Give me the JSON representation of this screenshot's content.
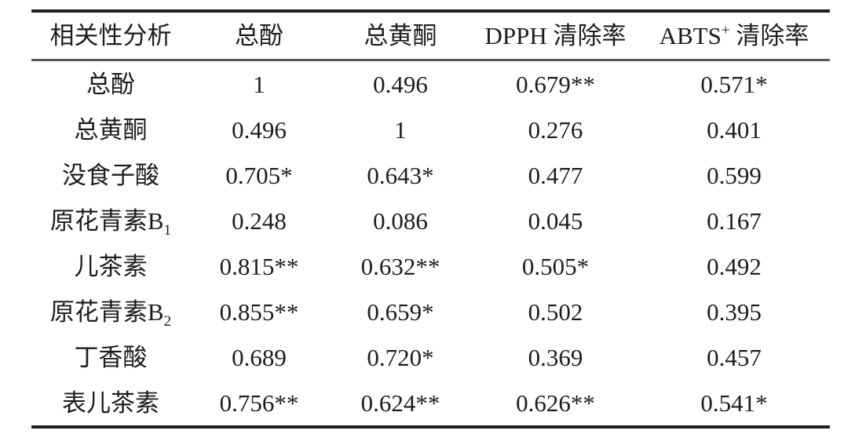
{
  "page": {
    "background_color": "#ffffff",
    "text_color": "#1d1d1d",
    "rule_heavy_color": "#1f1f1f",
    "rule_light_color": "#5a5a5a"
  },
  "table": {
    "title": "相关性分析",
    "columns": [
      {
        "label": "相关性分析"
      },
      {
        "label": "总酚"
      },
      {
        "label": "总黄酮"
      },
      {
        "label": "DPPH 清除率"
      },
      {
        "label": "ABTS",
        "sup": "+",
        "suffix": " 清除率"
      }
    ],
    "rows": [
      {
        "label": "总酚",
        "values": [
          "1",
          "0.496",
          "0.679**",
          "0.571*"
        ]
      },
      {
        "label": "总黄酮",
        "values": [
          "0.496",
          "1",
          "0.276",
          "0.401"
        ]
      },
      {
        "label": "没食子酸",
        "values": [
          "0.705*",
          "0.643*",
          "0.477",
          "0.599"
        ]
      },
      {
        "label": "原花青素B",
        "label_sub": "1",
        "values": [
          "0.248",
          "0.086",
          "0.045",
          "0.167"
        ]
      },
      {
        "label": "儿茶素",
        "values": [
          "0.815**",
          "0.632**",
          "0.505*",
          "0.492"
        ]
      },
      {
        "label": "原花青素B",
        "label_sub": "2",
        "values": [
          "0.855**",
          "0.659*",
          "0.502",
          "0.395"
        ]
      },
      {
        "label": "丁香酸",
        "values": [
          "0.689",
          "0.720*",
          "0.369",
          "0.457"
        ]
      },
      {
        "label": "表儿茶素",
        "values": [
          "0.756**",
          "0.624**",
          "0.626**",
          "0.541*"
        ]
      }
    ]
  }
}
